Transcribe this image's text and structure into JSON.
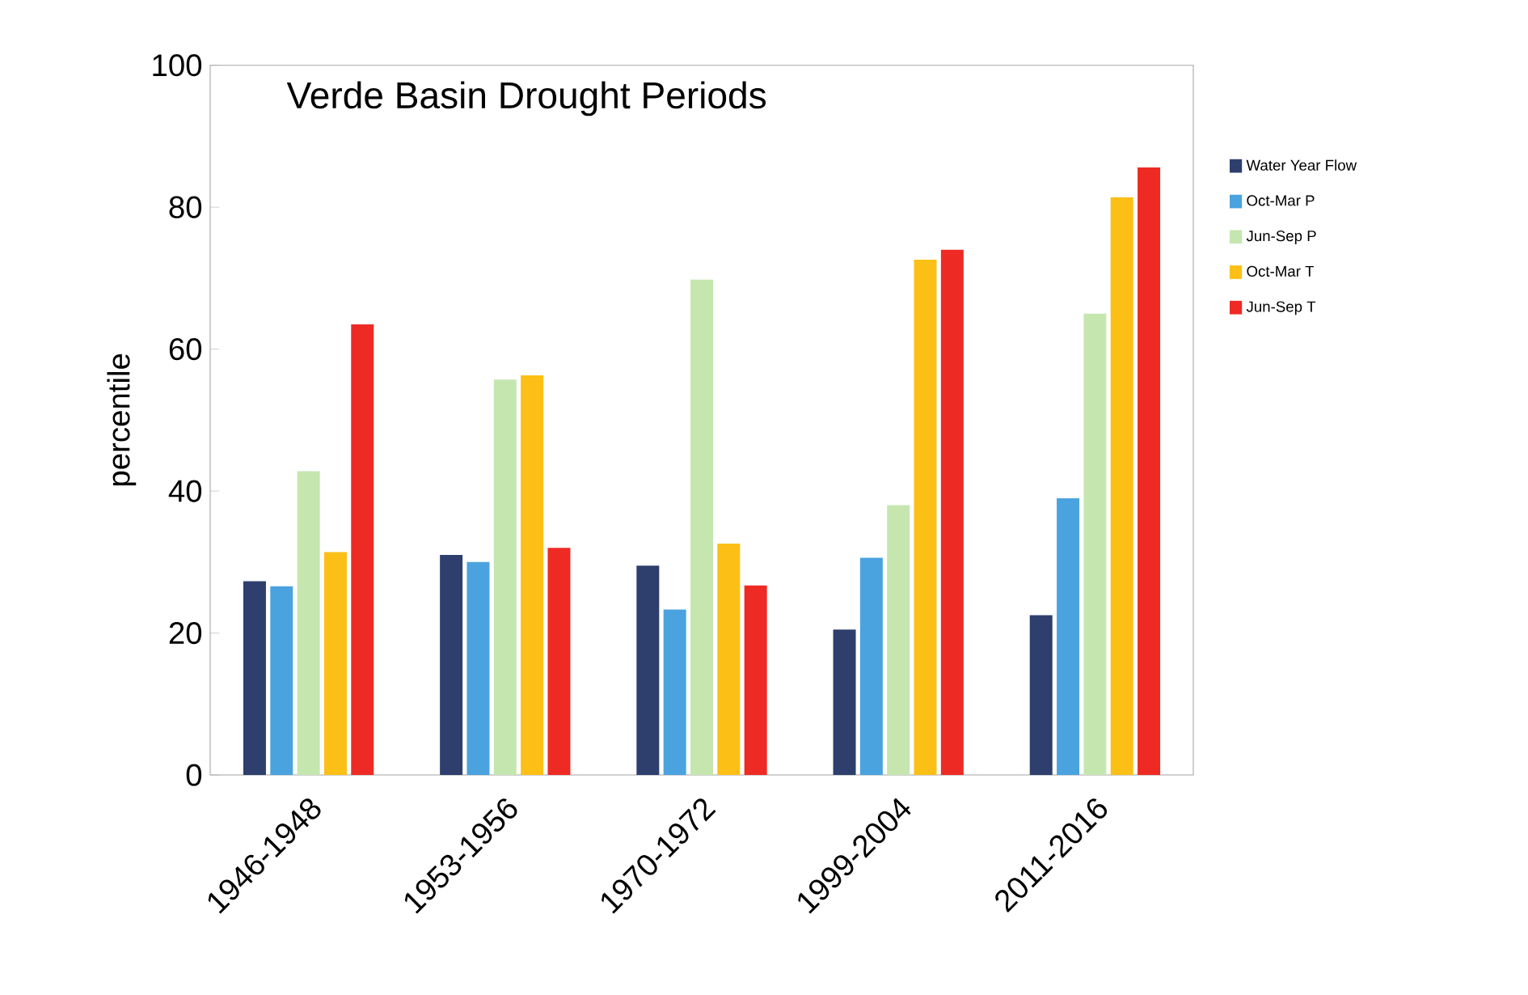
{
  "chart_data": {
    "type": "bar",
    "title": "Verde Basin Drought Periods",
    "ylabel": "percentile",
    "categories": [
      "1946-1948",
      "1953-1956",
      "1970-1972",
      "1999-2004",
      "2011-2016"
    ],
    "series": [
      {
        "name": "Water Year Flow",
        "color": "#2e3f6e",
        "values": [
          27.3,
          31,
          29.5,
          20.5,
          22.5
        ]
      },
      {
        "name": "Oct-Mar P",
        "color": "#4aa3df",
        "values": [
          26.6,
          30,
          23.3,
          30.6,
          39
        ]
      },
      {
        "name": "Jun-Sep P",
        "color": "#c6e6b0",
        "values": [
          42.8,
          55.7,
          69.8,
          38,
          65
        ]
      },
      {
        "name": "Oct-Mar T",
        "color": "#fbbf16",
        "values": [
          31.4,
          56.3,
          32.6,
          72.6,
          81.4
        ]
      },
      {
        "name": "Jun-Sep T",
        "color": "#ee2a24",
        "values": [
          63.5,
          32,
          26.7,
          74,
          85.6
        ]
      }
    ],
    "ylim": [
      0,
      100
    ],
    "yticks": [
      0,
      20,
      40,
      60,
      80,
      100
    ],
    "legend": "right"
  }
}
